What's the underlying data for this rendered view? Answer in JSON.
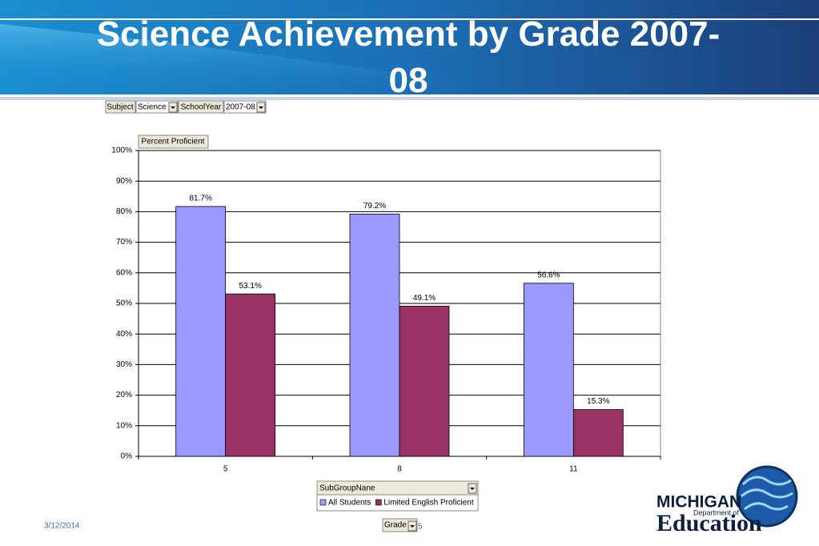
{
  "slide": {
    "title": "Science Achievement by Grade 2007-08",
    "date": "3/12/2014",
    "page": "5",
    "logo": {
      "line1": "MICHIGAN",
      "line2": "Department of",
      "line3": "Education"
    }
  },
  "pivot": {
    "filters": [
      {
        "name": "Subject",
        "value": "Science"
      },
      {
        "name": "SchoolYear",
        "value": "2007-08"
      }
    ],
    "data_field": "Percent Proficient",
    "series_field": "SubGroupNane",
    "category_field": "Grade"
  },
  "chart_data": {
    "type": "bar",
    "categories": [
      "5",
      "8",
      "11"
    ],
    "series": [
      {
        "name": "All Students",
        "color": "#9999ff",
        "values": [
          81.7,
          79.2,
          56.6
        ],
        "value_labels": [
          "81.7%",
          "79.2%",
          "56.6%"
        ]
      },
      {
        "name": "Limited English Proficient",
        "color": "#993366",
        "values": [
          53.1,
          49.1,
          15.3
        ],
        "value_labels": [
          "53.1%",
          "49.1%",
          "15.3%"
        ]
      }
    ],
    "ylim": [
      0,
      100
    ],
    "yticks": [
      {
        "value": 0,
        "label": "0%"
      },
      {
        "value": 10,
        "label": "10%"
      },
      {
        "value": 20,
        "label": "20%"
      },
      {
        "value": 30,
        "label": "30%"
      },
      {
        "value": 40,
        "label": "40%"
      },
      {
        "value": 50,
        "label": "50%"
      },
      {
        "value": 60,
        "label": "60%"
      },
      {
        "value": 70,
        "label": "70%"
      },
      {
        "value": 80,
        "label": "80%"
      },
      {
        "value": 90,
        "label": "90%"
      },
      {
        "value": 100,
        "label": "100%"
      }
    ],
    "grid": true,
    "legend": "bottom"
  }
}
